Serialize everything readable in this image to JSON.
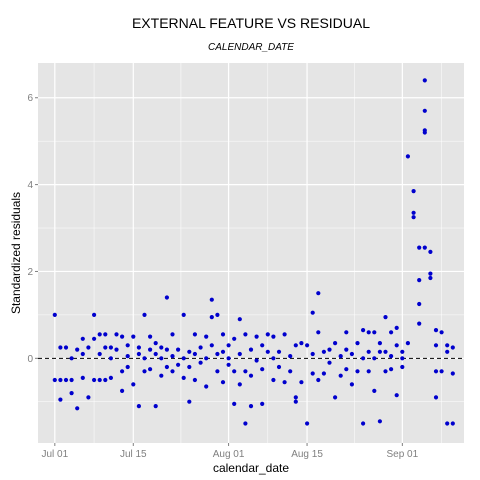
{
  "chart_data": {
    "type": "scatter",
    "title": "EXTERNAL FEATURE VS RESIDUAL",
    "subtitle": "CALENDAR_DATE",
    "xlabel": "calendar_date",
    "ylabel": "Standardized residuals",
    "x_ticks": [
      "Jul 01",
      "Jul 15",
      "Aug 01",
      "Aug 15",
      "Sep 01"
    ],
    "x_tick_values": [
      "2014-07-01",
      "2014-07-15",
      "2014-08-01",
      "2014-08-15",
      "2014-09-01"
    ],
    "y_ticks": [
      "0",
      "2",
      "4",
      "6"
    ],
    "xlim": [
      "2014-06-28",
      "2014-09-12"
    ],
    "ylim": [
      -1.95,
      6.8
    ],
    "reference_line": {
      "y": 0,
      "style": "dashed",
      "color": "#000000"
    },
    "grid": true,
    "point_color": "#0000cd",
    "panel_color": "#e5e5e5",
    "gridline_color": "#ffffff",
    "points": [
      {
        "x": "2014-07-01",
        "y": -0.5
      },
      {
        "x": "2014-07-01",
        "y": 1.0
      },
      {
        "x": "2014-07-02",
        "y": -0.5
      },
      {
        "x": "2014-07-02",
        "y": 0.25
      },
      {
        "x": "2014-07-02",
        "y": -0.95
      },
      {
        "x": "2014-07-03",
        "y": -0.5
      },
      {
        "x": "2014-07-03",
        "y": 0.25
      },
      {
        "x": "2014-07-04",
        "y": -0.5
      },
      {
        "x": "2014-07-04",
        "y": 0.0
      },
      {
        "x": "2014-07-04",
        "y": -0.8
      },
      {
        "x": "2014-07-05",
        "y": 0.2
      },
      {
        "x": "2014-07-05",
        "y": -1.15
      },
      {
        "x": "2014-07-06",
        "y": 0.1
      },
      {
        "x": "2014-07-06",
        "y": -0.45
      },
      {
        "x": "2014-07-06",
        "y": 0.45
      },
      {
        "x": "2014-07-07",
        "y": 0.25
      },
      {
        "x": "2014-07-07",
        "y": -0.9
      },
      {
        "x": "2014-07-08",
        "y": 1.0
      },
      {
        "x": "2014-07-08",
        "y": 0.45
      },
      {
        "x": "2014-07-08",
        "y": -0.5
      },
      {
        "x": "2014-07-09",
        "y": 0.1
      },
      {
        "x": "2014-07-09",
        "y": -0.5
      },
      {
        "x": "2014-07-09",
        "y": 0.55
      },
      {
        "x": "2014-07-10",
        "y": 0.25
      },
      {
        "x": "2014-07-10",
        "y": -0.5
      },
      {
        "x": "2014-07-10",
        "y": 0.55
      },
      {
        "x": "2014-07-11",
        "y": 0.0
      },
      {
        "x": "2014-07-11",
        "y": -0.45
      },
      {
        "x": "2014-07-11",
        "y": 0.25
      },
      {
        "x": "2014-07-12",
        "y": 0.55
      },
      {
        "x": "2014-07-12",
        "y": 0.2
      },
      {
        "x": "2014-07-13",
        "y": -0.3
      },
      {
        "x": "2014-07-13",
        "y": 0.5
      },
      {
        "x": "2014-07-13",
        "y": -0.75
      },
      {
        "x": "2014-07-14",
        "y": 0.3
      },
      {
        "x": "2014-07-14",
        "y": 0.05
      },
      {
        "x": "2014-07-14",
        "y": -0.2
      },
      {
        "x": "2014-07-15",
        "y": 0.5
      },
      {
        "x": "2014-07-15",
        "y": -0.6
      },
      {
        "x": "2014-07-16",
        "y": 0.25
      },
      {
        "x": "2014-07-16",
        "y": -1.1
      },
      {
        "x": "2014-07-16",
        "y": 0.1
      },
      {
        "x": "2014-07-17",
        "y": 0.0
      },
      {
        "x": "2014-07-17",
        "y": 1.0
      },
      {
        "x": "2014-07-17",
        "y": -0.3
      },
      {
        "x": "2014-07-18",
        "y": 0.5
      },
      {
        "x": "2014-07-18",
        "y": -0.25
      },
      {
        "x": "2014-07-18",
        "y": 0.2
      },
      {
        "x": "2014-07-19",
        "y": -1.1
      },
      {
        "x": "2014-07-19",
        "y": 0.35
      },
      {
        "x": "2014-07-19",
        "y": 0.1
      },
      {
        "x": "2014-07-20",
        "y": 0.25
      },
      {
        "x": "2014-07-20",
        "y": -0.4
      },
      {
        "x": "2014-07-20",
        "y": 0.0
      },
      {
        "x": "2014-07-21",
        "y": 1.4
      },
      {
        "x": "2014-07-21",
        "y": 0.2
      },
      {
        "x": "2014-07-21",
        "y": -0.2
      },
      {
        "x": "2014-07-22",
        "y": 0.55
      },
      {
        "x": "2014-07-22",
        "y": 0.05
      },
      {
        "x": "2014-07-22",
        "y": -0.3
      },
      {
        "x": "2014-07-23",
        "y": 0.2
      },
      {
        "x": "2014-07-23",
        "y": -0.15
      },
      {
        "x": "2014-07-24",
        "y": 1.0
      },
      {
        "x": "2014-07-24",
        "y": 0.0
      },
      {
        "x": "2014-07-24",
        "y": -0.45
      },
      {
        "x": "2014-07-25",
        "y": -1.0
      },
      {
        "x": "2014-07-25",
        "y": 0.15
      },
      {
        "x": "2014-07-25",
        "y": -0.2
      },
      {
        "x": "2014-07-26",
        "y": 0.55
      },
      {
        "x": "2014-07-26",
        "y": 0.1
      },
      {
        "x": "2014-07-26",
        "y": -0.5
      },
      {
        "x": "2014-07-27",
        "y": 0.25
      },
      {
        "x": "2014-07-27",
        "y": -0.1
      },
      {
        "x": "2014-07-28",
        "y": 0.5
      },
      {
        "x": "2014-07-28",
        "y": -0.65
      },
      {
        "x": "2014-07-28",
        "y": 0.0
      },
      {
        "x": "2014-07-29",
        "y": 1.35
      },
      {
        "x": "2014-07-29",
        "y": 0.3
      },
      {
        "x": "2014-07-29",
        "y": 0.95
      },
      {
        "x": "2014-07-30",
        "y": 0.1
      },
      {
        "x": "2014-07-30",
        "y": -0.3
      },
      {
        "x": "2014-07-30",
        "y": 1.0
      },
      {
        "x": "2014-07-31",
        "y": 0.55
      },
      {
        "x": "2014-07-31",
        "y": 0.15
      },
      {
        "x": "2014-07-31",
        "y": -0.55
      },
      {
        "x": "2014-08-01",
        "y": 0.3
      },
      {
        "x": "2014-08-01",
        "y": 0.0
      },
      {
        "x": "2014-08-01",
        "y": -0.15
      },
      {
        "x": "2014-08-02",
        "y": -1.05
      },
      {
        "x": "2014-08-02",
        "y": 0.45
      },
      {
        "x": "2014-08-02",
        "y": -0.3
      },
      {
        "x": "2014-08-03",
        "y": 0.9
      },
      {
        "x": "2014-08-03",
        "y": -0.6
      },
      {
        "x": "2014-08-03",
        "y": 0.1
      },
      {
        "x": "2014-08-04",
        "y": -1.5
      },
      {
        "x": "2014-08-04",
        "y": 0.55
      },
      {
        "x": "2014-08-04",
        "y": -0.3
      },
      {
        "x": "2014-08-05",
        "y": -1.1
      },
      {
        "x": "2014-08-05",
        "y": 0.2
      },
      {
        "x": "2014-08-05",
        "y": -0.4
      },
      {
        "x": "2014-08-06",
        "y": 0.5
      },
      {
        "x": "2014-08-06",
        "y": -0.05
      },
      {
        "x": "2014-08-07",
        "y": -1.05
      },
      {
        "x": "2014-08-07",
        "y": 0.3
      },
      {
        "x": "2014-08-07",
        "y": -0.25
      },
      {
        "x": "2014-08-08",
        "y": 0.15
      },
      {
        "x": "2014-08-08",
        "y": 0.55
      },
      {
        "x": "2014-08-09",
        "y": -0.5
      },
      {
        "x": "2014-08-09",
        "y": 0.0
      },
      {
        "x": "2014-08-09",
        "y": 0.5
      },
      {
        "x": "2014-08-10",
        "y": -0.2
      },
      {
        "x": "2014-08-10",
        "y": 0.15
      },
      {
        "x": "2014-08-11",
        "y": -0.55
      },
      {
        "x": "2014-08-11",
        "y": 0.55
      },
      {
        "x": "2014-08-12",
        "y": -0.3
      },
      {
        "x": "2014-08-12",
        "y": 0.05
      },
      {
        "x": "2014-08-13",
        "y": -1.0
      },
      {
        "x": "2014-08-13",
        "y": -0.9
      },
      {
        "x": "2014-08-13",
        "y": 0.3
      },
      {
        "x": "2014-08-14",
        "y": -0.55
      },
      {
        "x": "2014-08-14",
        "y": 0.35
      },
      {
        "x": "2014-08-15",
        "y": -1.5
      },
      {
        "x": "2014-08-15",
        "y": 0.3
      },
      {
        "x": "2014-08-16",
        "y": -0.35
      },
      {
        "x": "2014-08-16",
        "y": 1.05
      },
      {
        "x": "2014-08-16",
        "y": 0.1
      },
      {
        "x": "2014-08-17",
        "y": 1.5
      },
      {
        "x": "2014-08-17",
        "y": 0.6
      },
      {
        "x": "2014-08-17",
        "y": -0.5
      },
      {
        "x": "2014-08-18",
        "y": 0.15
      },
      {
        "x": "2014-08-18",
        "y": -0.35
      },
      {
        "x": "2014-08-19",
        "y": 0.2
      },
      {
        "x": "2014-08-19",
        "y": -0.1
      },
      {
        "x": "2014-08-20",
        "y": -0.9
      },
      {
        "x": "2014-08-20",
        "y": 0.35
      },
      {
        "x": "2014-08-21",
        "y": 0.05
      },
      {
        "x": "2014-08-21",
        "y": -0.4
      },
      {
        "x": "2014-08-22",
        "y": 0.6
      },
      {
        "x": "2014-08-22",
        "y": 0.2
      },
      {
        "x": "2014-08-22",
        "y": -0.25
      },
      {
        "x": "2014-08-23",
        "y": 0.1
      },
      {
        "x": "2014-08-23",
        "y": -0.6
      },
      {
        "x": "2014-08-24",
        "y": 0.35
      },
      {
        "x": "2014-08-24",
        "y": -0.3
      },
      {
        "x": "2014-08-25",
        "y": 0.65
      },
      {
        "x": "2014-08-25",
        "y": -1.5
      },
      {
        "x": "2014-08-25",
        "y": 0.0
      },
      {
        "x": "2014-08-26",
        "y": 0.6
      },
      {
        "x": "2014-08-26",
        "y": -0.3
      },
      {
        "x": "2014-08-26",
        "y": 0.15
      },
      {
        "x": "2014-08-27",
        "y": 0.6
      },
      {
        "x": "2014-08-27",
        "y": -0.75
      },
      {
        "x": "2014-08-27",
        "y": 0.0
      },
      {
        "x": "2014-08-28",
        "y": 0.35
      },
      {
        "x": "2014-08-28",
        "y": -1.45
      },
      {
        "x": "2014-08-28",
        "y": 0.15
      },
      {
        "x": "2014-08-29",
        "y": 0.95
      },
      {
        "x": "2014-08-29",
        "y": -0.3
      },
      {
        "x": "2014-08-29",
        "y": 0.15
      },
      {
        "x": "2014-08-30",
        "y": 0.6
      },
      {
        "x": "2014-08-30",
        "y": -0.25
      },
      {
        "x": "2014-08-30",
        "y": 0.05
      },
      {
        "x": "2014-08-31",
        "y": 0.7
      },
      {
        "x": "2014-08-31",
        "y": -0.85
      },
      {
        "x": "2014-08-31",
        "y": 0.3
      },
      {
        "x": "2014-09-01",
        "y": 0.0
      },
      {
        "x": "2014-09-01",
        "y": 0.15
      },
      {
        "x": "2014-09-01",
        "y": -0.2
      },
      {
        "x": "2014-09-02",
        "y": 4.65
      },
      {
        "x": "2014-09-02",
        "y": 0.35
      },
      {
        "x": "2014-09-03",
        "y": 3.85
      },
      {
        "x": "2014-09-03",
        "y": 3.35
      },
      {
        "x": "2014-09-03",
        "y": 3.25
      },
      {
        "x": "2014-09-04",
        "y": 2.55
      },
      {
        "x": "2014-09-04",
        "y": 1.8
      },
      {
        "x": "2014-09-04",
        "y": 1.25
      },
      {
        "x": "2014-09-04",
        "y": 0.8
      },
      {
        "x": "2014-09-05",
        "y": 6.4
      },
      {
        "x": "2014-09-05",
        "y": 5.7
      },
      {
        "x": "2014-09-05",
        "y": 5.2
      },
      {
        "x": "2014-09-05",
        "y": 5.25
      },
      {
        "x": "2014-09-05",
        "y": 2.55
      },
      {
        "x": "2014-09-06",
        "y": 2.45
      },
      {
        "x": "2014-09-06",
        "y": 1.95
      },
      {
        "x": "2014-09-06",
        "y": 1.85
      },
      {
        "x": "2014-09-07",
        "y": 0.65
      },
      {
        "x": "2014-09-07",
        "y": -0.9
      },
      {
        "x": "2014-09-07",
        "y": -0.3
      },
      {
        "x": "2014-09-07",
        "y": 0.3
      },
      {
        "x": "2014-09-08",
        "y": 0.6
      },
      {
        "x": "2014-09-08",
        "y": -0.3
      },
      {
        "x": "2014-09-09",
        "y": 0.3
      },
      {
        "x": "2014-09-09",
        "y": 0.15
      },
      {
        "x": "2014-09-09",
        "y": -1.5
      },
      {
        "x": "2014-09-10",
        "y": -1.5
      },
      {
        "x": "2014-09-10",
        "y": 0.25
      },
      {
        "x": "2014-09-10",
        "y": -0.35
      }
    ]
  }
}
